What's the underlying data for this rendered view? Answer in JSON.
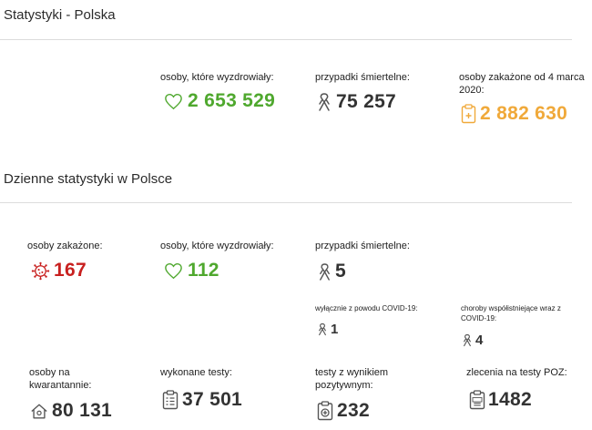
{
  "header": {
    "title": "Statystyki - Polska"
  },
  "summary": {
    "recovered": {
      "label": "osoby, które wyzdrowiały:",
      "value": "2 653 529",
      "icon": "heart-icon",
      "color": "#4fa82e"
    },
    "deaths": {
      "label": "przypadki śmiertelne:",
      "value": "75 257",
      "icon": "ribbon-icon",
      "color": "#333333"
    },
    "infected": {
      "label": "osoby zakażone od 4 marca 2020:",
      "value": "2 882 630",
      "icon": "clipboard-medical-icon",
      "color": "#f0a93a"
    }
  },
  "daily": {
    "title": "Dzienne statystyki w Polsce",
    "infected": {
      "label": "osoby zakażone:",
      "value": "167",
      "icon": "virus-icon",
      "color": "#c8201f"
    },
    "recovered": {
      "label": "osoby, które wyzdrowiały:",
      "value": "112",
      "icon": "heart-icon",
      "color": "#4fa82e"
    },
    "deaths": {
      "label": "przypadki śmiertelne:",
      "value": "5",
      "icon": "ribbon-icon"
    },
    "deaths_covid_only": {
      "label": "wyłącznie z powodu COVID-19:",
      "value": "1",
      "icon": "ribbon-icon"
    },
    "deaths_comorbid": {
      "label": "choroby współistniejące wraz z COVID-19:",
      "value": "4",
      "icon": "ribbon-icon"
    },
    "quarantine": {
      "label": "osoby na kwarantannie:",
      "value": "80 131",
      "icon": "house-icon"
    },
    "tests": {
      "label": "wykonane testy:",
      "value": "37 501",
      "icon": "test-clipboard-icon"
    },
    "positive_tests": {
      "label": "testy z wynikiem pozytywnym:",
      "value": "232",
      "icon": "positive-test-icon"
    },
    "poz_orders": {
      "label": "zlecenia na testy POZ:",
      "value": "1482",
      "icon": "poz-clipboard-icon"
    }
  }
}
